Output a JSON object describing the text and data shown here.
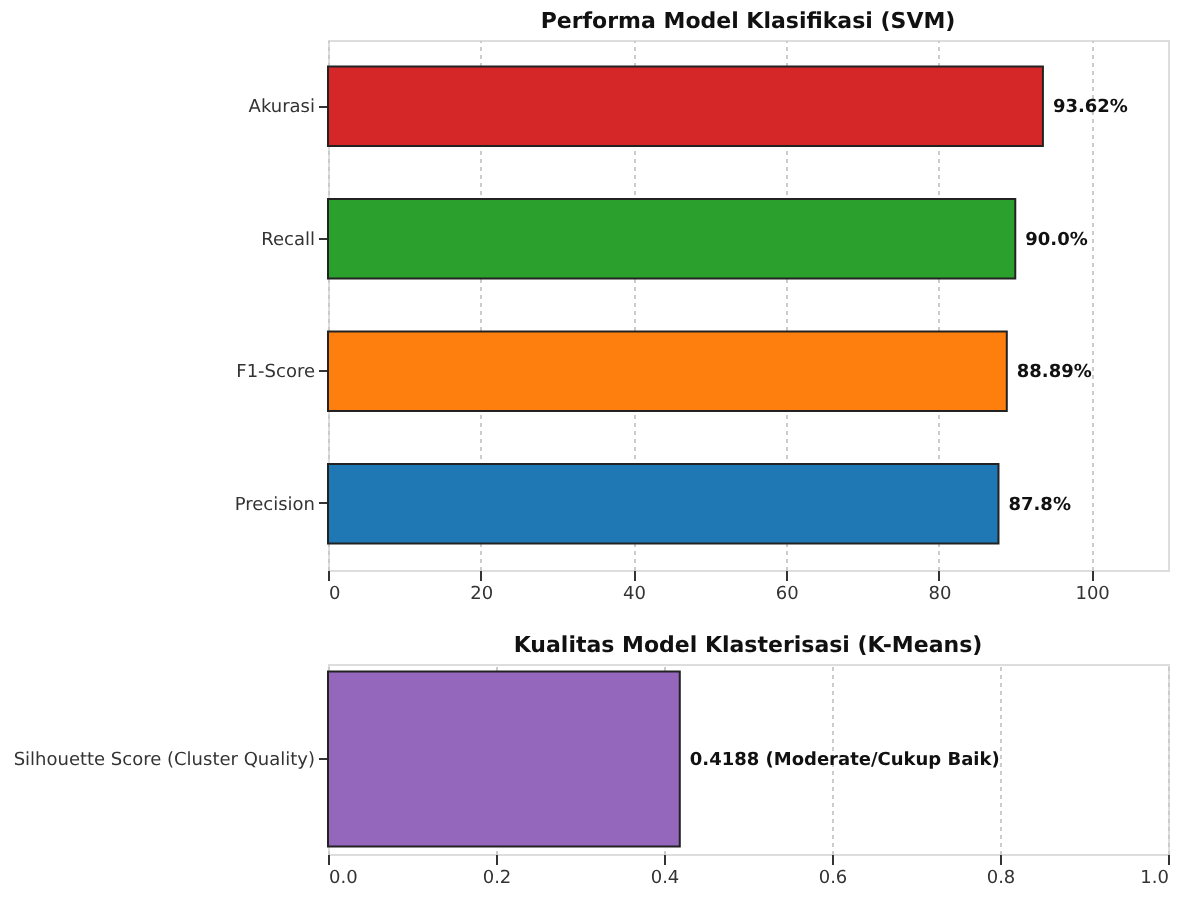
{
  "chart_data": [
    {
      "type": "bar",
      "orientation": "horizontal",
      "title": "Performa Model Klasifikasi (SVM)",
      "categories": [
        "Akurasi",
        "Recall",
        "F1-Score",
        "Precision"
      ],
      "values": [
        93.62,
        90.0,
        88.89,
        87.8
      ],
      "colors": [
        "#d62728",
        "#2ca02c",
        "#ff7f0e",
        "#1f77b4"
      ],
      "value_labels": [
        "93.62%",
        "90.0%",
        "88.89%",
        "87.8%"
      ],
      "xlim": [
        0,
        110
      ],
      "xticks": [
        0,
        20,
        40,
        60,
        80,
        100
      ],
      "grid": "x"
    },
    {
      "type": "bar",
      "orientation": "horizontal",
      "title": "Kualitas Model Klasterisasi (K-Means)",
      "categories": [
        "Silhouette Score (Cluster Quality)"
      ],
      "values": [
        0.4188
      ],
      "colors": [
        "#9467bd"
      ],
      "value_labels": [
        "0.4188 (Moderate/Cukup Baik)"
      ],
      "xlim": [
        0,
        1
      ],
      "xticks": [
        {
          "value": 0,
          "label": "0.0"
        },
        {
          "value": 0.2,
          "label": "0.2"
        },
        {
          "value": 0.4,
          "label": "0.4"
        },
        {
          "value": 0.6,
          "label": "0.6"
        },
        {
          "value": 0.8,
          "label": "0.8"
        },
        {
          "value": 1,
          "label": "1.0"
        }
      ],
      "grid": "x"
    }
  ]
}
